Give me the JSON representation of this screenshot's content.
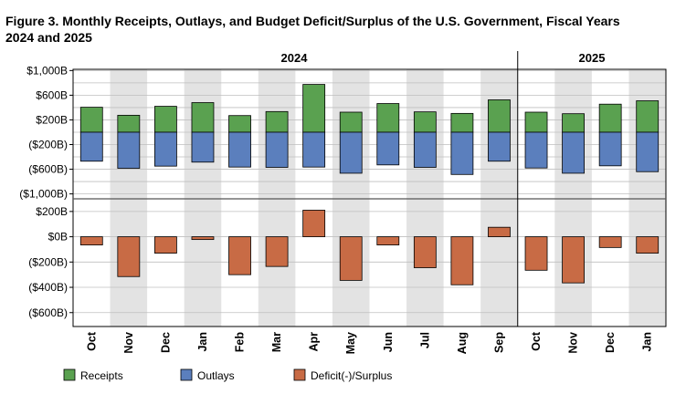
{
  "title_line1": "Figure 3. Monthly Receipts, Outlays, and Budget Deficit/Surplus of the U.S. Government, Fiscal Years",
  "title_line2": "2024 and 2025",
  "years": [
    {
      "label": "2024"
    },
    {
      "label": "2025"
    }
  ],
  "colors": {
    "receipts": "#5aa150",
    "outlays": "#5b7fbd",
    "deficit": "#c86b45",
    "shade": "#e3e3e3",
    "grid": "#bfbfbf"
  },
  "chart_data": [
    {
      "type": "bar",
      "panel": "top",
      "categories": [
        "Oct",
        "Nov",
        "Dec",
        "Jan",
        "Feb",
        "Mar",
        "Apr",
        "May",
        "Jun",
        "Jul",
        "Aug",
        "Sep",
        "Oct",
        "Nov",
        "Dec",
        "Jan"
      ],
      "fiscal_years": [
        "2024",
        "2024",
        "2024",
        "2024",
        "2024",
        "2024",
        "2024",
        "2024",
        "2024",
        "2024",
        "2024",
        "2024",
        "2025",
        "2025",
        "2025",
        "2025"
      ],
      "series": [
        {
          "name": "Receipts",
          "values": [
            405,
            275,
            420,
            480,
            270,
            335,
            775,
            325,
            465,
            330,
            305,
            525,
            325,
            300,
            455,
            510
          ]
        },
        {
          "name": "Outlays",
          "values": [
            -470,
            -585,
            -550,
            -485,
            -565,
            -570,
            -565,
            -665,
            -530,
            -570,
            -685,
            -470,
            -580,
            -665,
            -545,
            -640
          ]
        }
      ],
      "yticks": [
        1000,
        600,
        200,
        -200,
        -600,
        -1000
      ],
      "ytick_labels": [
        "$1,000B",
        "$600B",
        "$200B",
        "($200B)",
        "($600B)",
        "($1,000B)"
      ],
      "ylim": [
        -1080,
        1020
      ]
    },
    {
      "type": "bar",
      "panel": "bottom",
      "categories": [
        "Oct",
        "Nov",
        "Dec",
        "Jan",
        "Feb",
        "Mar",
        "Apr",
        "May",
        "Jun",
        "Jul",
        "Aug",
        "Sep",
        "Oct",
        "Nov",
        "Dec",
        "Jan"
      ],
      "series": [
        {
          "name": "Deficit(-)/Surplus",
          "values": [
            -65,
            -315,
            -130,
            -22,
            -300,
            -235,
            210,
            -345,
            -65,
            -245,
            -380,
            75,
            -265,
            -365,
            -85,
            -130
          ]
        }
      ],
      "yticks": [
        200,
        0,
        -200,
        -400,
        -600
      ],
      "ytick_labels": [
        "$200B",
        "$0B",
        "($200B)",
        "($400B)",
        "($600B)"
      ],
      "ylim": [
        -710,
        300
      ]
    }
  ],
  "legend": [
    {
      "key": "receipts",
      "label": "Receipts"
    },
    {
      "key": "outlays",
      "label": "Outlays"
    },
    {
      "key": "deficit",
      "label": "Deficit(-)/Surplus"
    }
  ]
}
